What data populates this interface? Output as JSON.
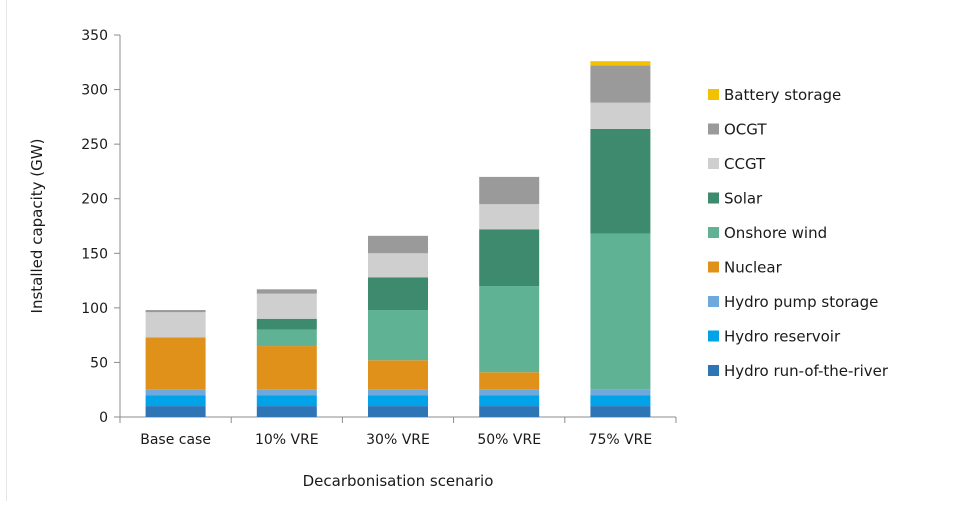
{
  "chart_data": {
    "type": "bar",
    "stacked": true,
    "title": "",
    "xlabel": "Decarbonisation scenario",
    "ylabel": "Installed capacity (GW)",
    "ylim": [
      0,
      350
    ],
    "yticks": [
      "0",
      "50",
      "100",
      "150",
      "200",
      "250",
      "300",
      "350"
    ],
    "grid": false,
    "legend_position": "right",
    "categories": [
      "Base case",
      "10% VRE",
      "30% VRE",
      "50% VRE",
      "75% VRE"
    ],
    "series": [
      {
        "name": "Hydro run-of-the-river",
        "color": "#2e75b6",
        "values": [
          10,
          10,
          10,
          10,
          10
        ]
      },
      {
        "name": "Hydro reservoir",
        "color": "#00a2e8",
        "values": [
          10,
          10,
          10,
          10,
          10
        ]
      },
      {
        "name": "Hydro pump storage",
        "color": "#6fa8dc",
        "values": [
          5,
          5,
          5,
          5,
          5
        ]
      },
      {
        "name": "Nuclear",
        "color": "#e0911a",
        "values": [
          48,
          40,
          27,
          16,
          0
        ]
      },
      {
        "name": "Onshore wind",
        "color": "#5fb394",
        "values": [
          0,
          15,
          46,
          79,
          143
        ]
      },
      {
        "name": "Solar",
        "color": "#3d8a6e",
        "values": [
          0,
          10,
          30,
          52,
          96
        ]
      },
      {
        "name": "CCGT",
        "color": "#cfcfcf",
        "values": [
          23,
          23,
          22,
          23,
          24
        ]
      },
      {
        "name": "OCGT",
        "color": "#9a9a9a",
        "values": [
          2,
          4,
          16,
          25,
          34
        ]
      },
      {
        "name": "Battery storage",
        "color": "#f2c200",
        "values": [
          0,
          0,
          0,
          0,
          4
        ]
      }
    ]
  }
}
